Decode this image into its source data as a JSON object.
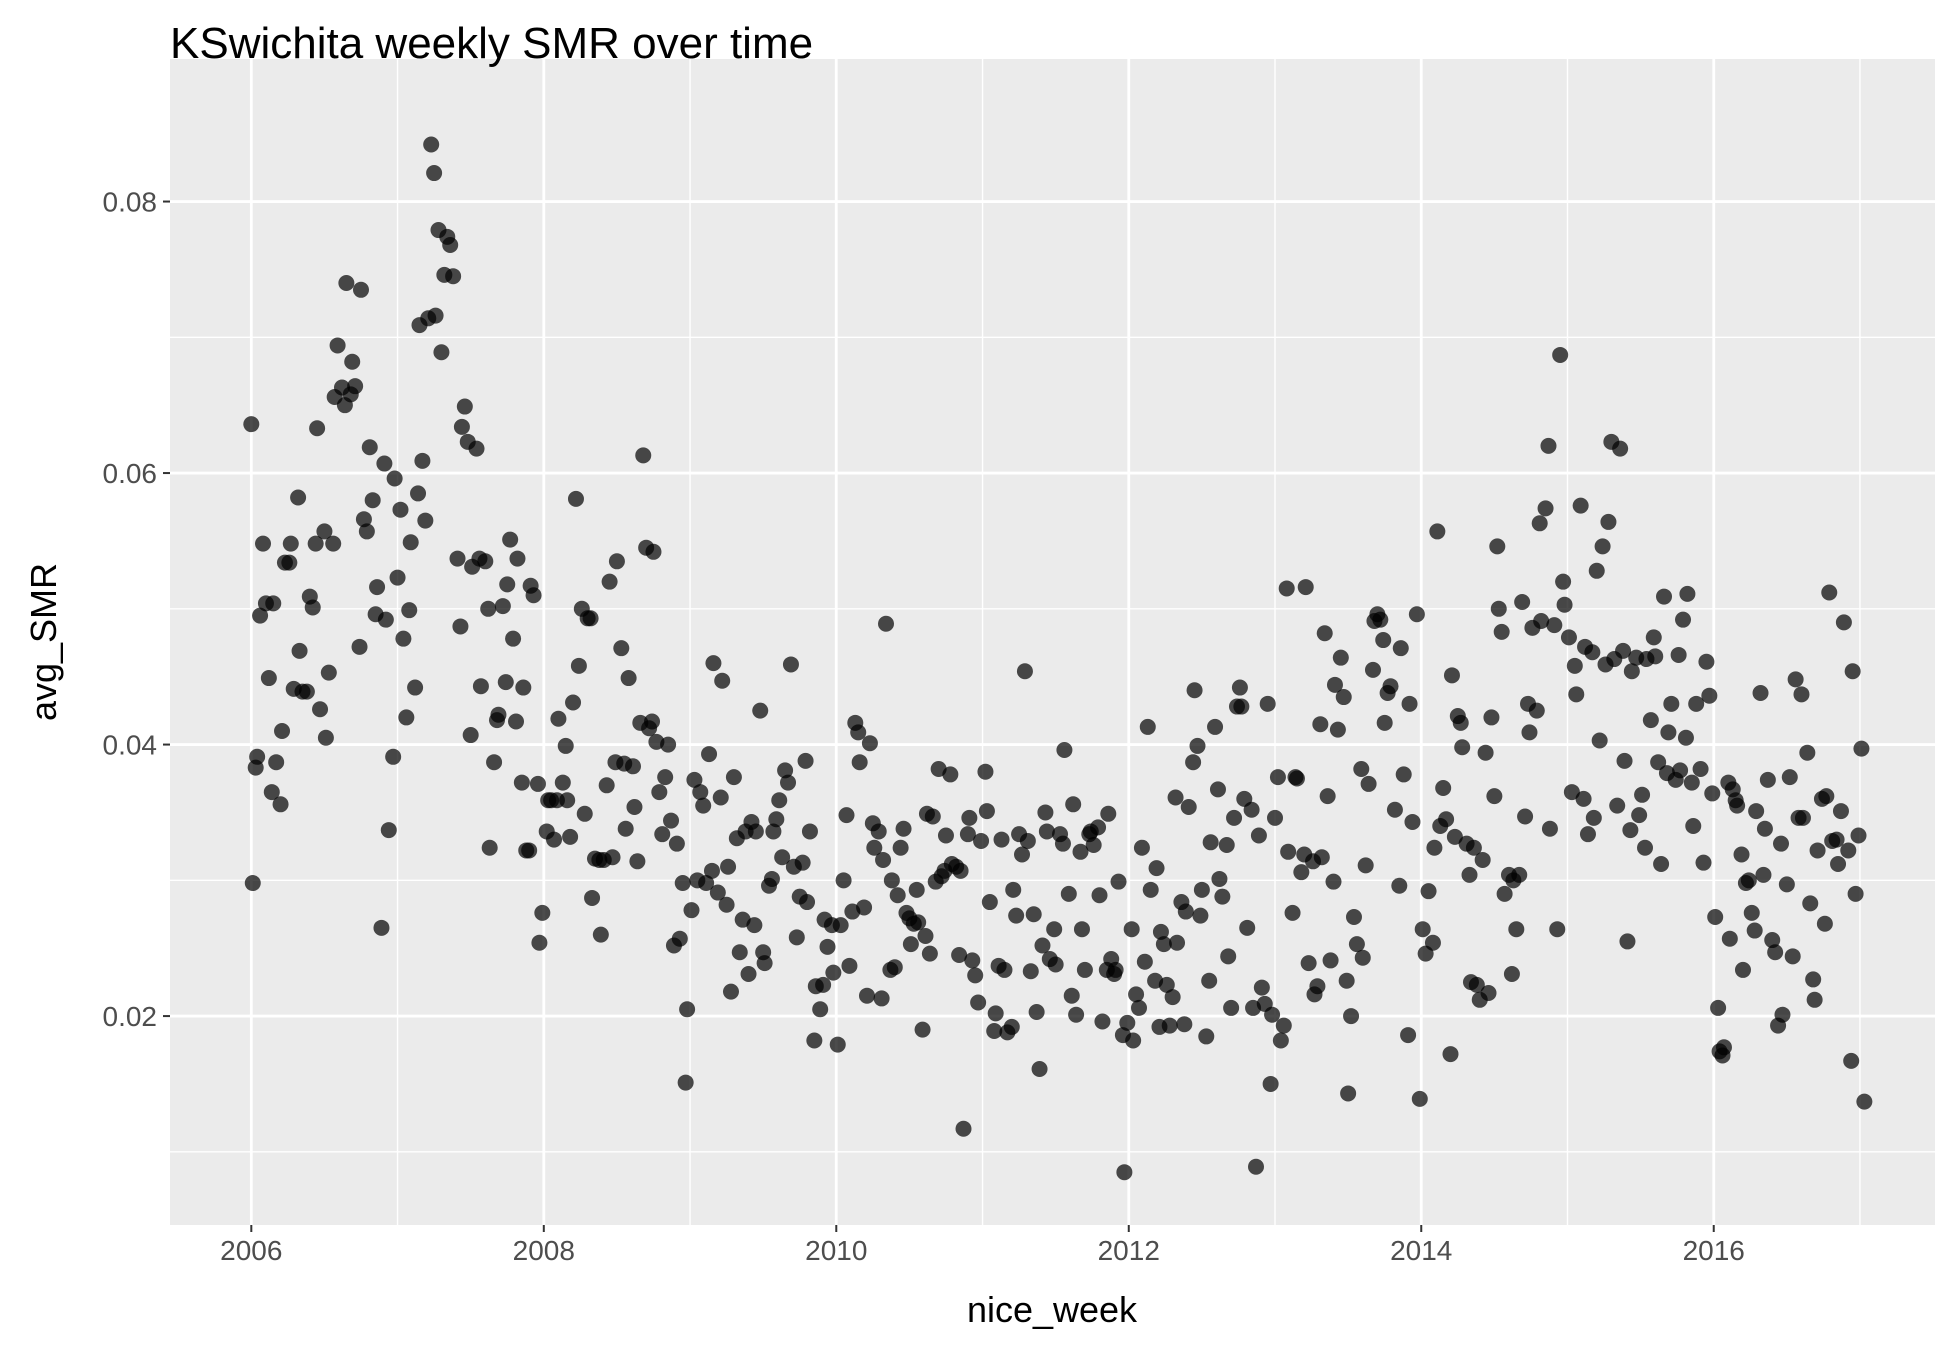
{
  "chart_data": {
    "type": "scatter",
    "title": "KSwichita weekly SMR over time",
    "x_label": "nice_week",
    "y_label": "avg_SMR",
    "color": "#000000",
    "point_alpha": 0.7,
    "grid": true,
    "xlim": [
      2005.444,
      2017.513
    ],
    "ylim": [
      0.00461,
      0.0905
    ],
    "xticks": [
      2006,
      2008,
      2010,
      2012,
      2014,
      2016
    ],
    "yticks": [
      0.02,
      0.04,
      0.06,
      0.08
    ],
    "x_minor_ticks": [
      2007,
      2009,
      2011,
      2013,
      2015,
      2017
    ],
    "y_minor_ticks": [
      0.01,
      0.03,
      0.05,
      0.07
    ],
    "x": [
      2006.0,
      2006.01,
      2006.03,
      2006.04,
      2006.06,
      2006.08,
      2006.1,
      2006.12,
      2006.14,
      2006.15,
      2006.17,
      2006.2,
      2006.21,
      2006.23,
      2006.26,
      2006.27,
      2006.29,
      2006.32,
      2006.33,
      2006.35,
      2006.38,
      2006.4,
      2006.42,
      2006.44,
      2006.45,
      2006.47,
      2006.5,
      2006.51,
      2006.53,
      2006.56,
      2006.57,
      2006.59,
      2006.62,
      2006.64,
      2006.65,
      2006.68,
      2006.69,
      2006.71,
      2006.74,
      2006.75,
      2006.77,
      2006.79,
      2006.81,
      2006.83,
      2006.85,
      2006.86,
      2006.89,
      2006.91,
      2006.92,
      2006.94,
      2006.97,
      2006.98,
      2007.0,
      2007.02,
      2007.04,
      2007.06,
      2007.08,
      2007.09,
      2007.12,
      2007.14,
      2007.15,
      2007.17,
      2007.19,
      2007.21,
      2007.23,
      2007.25,
      2007.26,
      2007.28,
      2007.3,
      2007.32,
      2007.34,
      2007.36,
      2007.38,
      2007.41,
      2007.43,
      2007.44,
      2007.46,
      2007.48,
      2007.5,
      2007.51,
      2007.54,
      2007.56,
      2007.57,
      2007.6,
      2007.62,
      2007.63,
      2007.66,
      2007.68,
      2007.69,
      2007.72,
      2007.74,
      2007.75,
      2007.77,
      2007.79,
      2007.81,
      2007.82,
      2007.85,
      2007.86,
      2007.88,
      2007.9,
      2007.91,
      2007.93,
      2007.96,
      2007.97,
      2007.99,
      2008.02,
      2008.03,
      2008.05,
      2008.07,
      2008.09,
      2008.1,
      2008.13,
      2008.15,
      2008.16,
      2008.18,
      2008.2,
      2008.22,
      2008.24,
      2008.26,
      2008.28,
      2008.3,
      2008.32,
      2008.33,
      2008.35,
      2008.38,
      2008.39,
      2008.41,
      2008.43,
      2008.45,
      2008.47,
      2008.49,
      2008.5,
      2008.53,
      2008.55,
      2008.56,
      2008.58,
      2008.61,
      2008.62,
      2008.64,
      2008.66,
      2008.68,
      2008.7,
      2008.72,
      2008.74,
      2008.75,
      2008.77,
      2008.79,
      2008.81,
      2008.83,
      2008.85,
      2008.87,
      2008.89,
      2008.91,
      2008.93,
      2008.95,
      2008.97,
      2008.98,
      2009.01,
      2009.03,
      2009.05,
      2009.07,
      2009.09,
      2009.11,
      2009.13,
      2009.15,
      2009.16,
      2009.19,
      2009.21,
      2009.22,
      2009.25,
      2009.26,
      2009.28,
      2009.3,
      2009.32,
      2009.34,
      2009.36,
      2009.38,
      2009.4,
      2009.42,
      2009.44,
      2009.45,
      2009.48,
      2009.5,
      2009.51,
      2009.54,
      2009.56,
      2009.57,
      2009.59,
      2009.61,
      2009.63,
      2009.65,
      2009.67,
      2009.69,
      2009.71,
      2009.73,
      2009.75,
      2009.77,
      2009.79,
      2009.8,
      2009.82,
      2009.85,
      2009.86,
      2009.89,
      2009.91,
      2009.92,
      2009.94,
      2009.97,
      2009.98,
      2010.01,
      2010.03,
      2010.05,
      2010.07,
      2010.09,
      2010.11,
      2010.13,
      2010.15,
      2010.16,
      2010.19,
      2010.21,
      2010.23,
      2010.25,
      2010.26,
      2010.29,
      2010.31,
      2010.32,
      2010.34,
      2010.37,
      2010.38,
      2010.4,
      2010.42,
      2010.44,
      2010.46,
      2010.48,
      2010.5,
      2010.51,
      2010.53,
      2010.55,
      2010.56,
      2010.59,
      2010.61,
      2010.62,
      2010.64,
      2010.66,
      2010.68,
      2010.7,
      2010.72,
      2010.74,
      2010.75,
      2010.78,
      2010.79,
      2010.82,
      2010.84,
      2010.85,
      2010.87,
      2010.9,
      2010.91,
      2010.93,
      2010.95,
      2010.97,
      2010.99,
      2011.02,
      2011.03,
      2011.05,
      2011.08,
      2011.09,
      2011.11,
      2011.13,
      2011.15,
      2011.17,
      2011.2,
      2011.21,
      2011.23,
      2011.25,
      2011.27,
      2011.29,
      2011.31,
      2011.33,
      2011.35,
      2011.37,
      2011.39,
      2011.41,
      2011.43,
      2011.44,
      2011.46,
      2011.49,
      2011.5,
      2011.53,
      2011.55,
      2011.56,
      2011.59,
      2011.61,
      2011.62,
      2011.64,
      2011.67,
      2011.68,
      2011.7,
      2011.73,
      2011.74,
      2011.76,
      2011.79,
      2011.8,
      2011.82,
      2011.85,
      2011.86,
      2011.88,
      2011.9,
      2011.91,
      2011.93,
      2011.96,
      2011.97,
      2011.99,
      2012.02,
      2012.03,
      2012.05,
      2012.07,
      2012.09,
      2012.11,
      2012.13,
      2012.15,
      2012.18,
      2012.19,
      2012.21,
      2012.22,
      2012.24,
      2012.26,
      2012.28,
      2012.3,
      2012.32,
      2012.33,
      2012.36,
      2012.38,
      2012.39,
      2012.41,
      2012.44,
      2012.45,
      2012.47,
      2012.49,
      2012.5,
      2012.53,
      2012.55,
      2012.56,
      2012.59,
      2012.61,
      2012.62,
      2012.64,
      2012.67,
      2012.68,
      2012.7,
      2012.72,
      2012.74,
      2012.76,
      2012.77,
      2012.79,
      2012.81,
      2012.84,
      2012.85,
      2012.87,
      2012.89,
      2012.91,
      2012.93,
      2012.95,
      2012.97,
      2012.98,
      2013.0,
      2013.02,
      2013.04,
      2013.06,
      2013.08,
      2013.09,
      2013.12,
      2013.14,
      2013.15,
      2013.18,
      2013.2,
      2013.21,
      2013.23,
      2013.26,
      2013.27,
      2013.29,
      2013.31,
      2013.32,
      2013.34,
      2013.36,
      2013.38,
      2013.4,
      2013.41,
      2013.43,
      2013.45,
      2013.47,
      2013.49,
      2013.5,
      2013.52,
      2013.54,
      2013.56,
      2013.59,
      2013.6,
      2013.62,
      2013.64,
      2013.67,
      2013.68,
      2013.7,
      2013.72,
      2013.74,
      2013.75,
      2013.77,
      2013.79,
      2013.82,
      2013.85,
      2013.86,
      2013.88,
      2013.91,
      2013.92,
      2013.94,
      2013.97,
      2013.99,
      2014.01,
      2014.03,
      2014.05,
      2014.08,
      2014.09,
      2014.11,
      2014.13,
      2014.15,
      2014.17,
      2014.2,
      2014.21,
      2014.23,
      2014.25,
      2014.27,
      2014.28,
      2014.31,
      2014.33,
      2014.34,
      2014.36,
      2014.38,
      2014.4,
      2014.42,
      2014.44,
      2014.46,
      2014.48,
      2014.5,
      2014.52,
      2014.53,
      2014.55,
      2014.57,
      2014.6,
      2014.62,
      2014.63,
      2014.65,
      2014.67,
      2014.69,
      2014.71,
      2014.73,
      2014.74,
      2014.76,
      2014.79,
      2014.81,
      2014.82,
      2014.85,
      2014.87,
      2014.88,
      2014.91,
      2014.93,
      2014.95,
      2014.97,
      2014.98,
      2015.01,
      2015.03,
      2015.05,
      2015.06,
      2015.09,
      2015.11,
      2015.12,
      2015.14,
      2015.17,
      2015.18,
      2015.2,
      2015.22,
      2015.24,
      2015.26,
      2015.28,
      2015.3,
      2015.32,
      2015.34,
      2015.36,
      2015.38,
      2015.39,
      2015.41,
      2015.43,
      2015.44,
      2015.47,
      2015.49,
      2015.51,
      2015.53,
      2015.54,
      2015.57,
      2015.59,
      2015.6,
      2015.62,
      2015.64,
      2015.66,
      2015.68,
      2015.69,
      2015.71,
      2015.74,
      2015.76,
      2015.77,
      2015.79,
      2015.81,
      2015.82,
      2015.85,
      2015.86,
      2015.88,
      2015.91,
      2015.93,
      2015.95,
      2015.97,
      2015.99,
      2016.01,
      2016.03,
      2016.04,
      2016.06,
      2016.07,
      2016.1,
      2016.11,
      2016.13,
      2016.15,
      2016.16,
      2016.19,
      2016.2,
      2016.22,
      2016.24,
      2016.26,
      2016.28,
      2016.29,
      2016.32,
      2016.34,
      2016.35,
      2016.37,
      2016.4,
      2016.42,
      2016.44,
      2016.46,
      2016.47,
      2016.5,
      2016.52,
      2016.54,
      2016.56,
      2016.58,
      2016.6,
      2016.61,
      2016.64,
      2016.66,
      2016.68,
      2016.69,
      2016.71,
      2016.74,
      2016.76,
      2016.77,
      2016.79,
      2016.81,
      2016.84,
      2016.85,
      2016.87,
      2016.89,
      2016.92,
      2016.94,
      2016.95,
      2016.97,
      2016.99,
      2017.01,
      2017.03
    ],
    "values": [
      0.0636,
      0.0298,
      0.0383,
      0.0391,
      0.0495,
      0.0548,
      0.0504,
      0.0449,
      0.0365,
      0.0504,
      0.0387,
      0.0356,
      0.041,
      0.0534,
      0.0534,
      0.0548,
      0.0441,
      0.0582,
      0.0469,
      0.0439,
      0.0439,
      0.0509,
      0.0501,
      0.0548,
      0.0633,
      0.0426,
      0.0557,
      0.0405,
      0.0453,
      0.0548,
      0.0656,
      0.0694,
      0.0663,
      0.065,
      0.074,
      0.0658,
      0.0682,
      0.0664,
      0.0472,
      0.0735,
      0.0566,
      0.0557,
      0.0619,
      0.058,
      0.0496,
      0.0516,
      0.0265,
      0.0607,
      0.0492,
      0.0337,
      0.0391,
      0.0596,
      0.0523,
      0.0573,
      0.0478,
      0.042,
      0.0499,
      0.0549,
      0.0442,
      0.0585,
      0.0709,
      0.0609,
      0.0565,
      0.0714,
      0.0842,
      0.0821,
      0.0716,
      0.0779,
      0.0689,
      0.0746,
      0.0774,
      0.0768,
      0.0745,
      0.0537,
      0.0487,
      0.0634,
      0.0649,
      0.0623,
      0.0407,
      0.0531,
      0.0618,
      0.0537,
      0.0443,
      0.0535,
      0.05,
      0.0324,
      0.0387,
      0.0418,
      0.0422,
      0.0502,
      0.0446,
      0.0518,
      0.0551,
      0.0478,
      0.0417,
      0.0537,
      0.0372,
      0.0442,
      0.0322,
      0.0322,
      0.0517,
      0.051,
      0.0371,
      0.0254,
      0.0276,
      0.0336,
      0.0359,
      0.0359,
      0.033,
      0.0359,
      0.0419,
      0.0372,
      0.0399,
      0.0359,
      0.0332,
      0.0431,
      0.0581,
      0.0458,
      0.05,
      0.0349,
      0.0493,
      0.0493,
      0.0287,
      0.0316,
      0.0315,
      0.026,
      0.0315,
      0.037,
      0.052,
      0.0317,
      0.0387,
      0.0535,
      0.0471,
      0.0386,
      0.0338,
      0.0449,
      0.0384,
      0.0354,
      0.0314,
      0.0416,
      0.0613,
      0.0545,
      0.0412,
      0.0417,
      0.0542,
      0.0402,
      0.0365,
      0.0334,
      0.0376,
      0.04,
      0.0344,
      0.0252,
      0.0327,
      0.0257,
      0.0298,
      0.0151,
      0.0205,
      0.0278,
      0.0374,
      0.03,
      0.0365,
      0.0355,
      0.0298,
      0.0393,
      0.0307,
      0.046,
      0.0291,
      0.0361,
      0.0447,
      0.0282,
      0.031,
      0.0218,
      0.0376,
      0.0331,
      0.0247,
      0.0271,
      0.0336,
      0.0231,
      0.0343,
      0.0267,
      0.0336,
      0.0425,
      0.0247,
      0.0239,
      0.0296,
      0.0301,
      0.0336,
      0.0345,
      0.0359,
      0.0317,
      0.0381,
      0.0372,
      0.0459,
      0.031,
      0.0258,
      0.0288,
      0.0313,
      0.0388,
      0.0284,
      0.0336,
      0.0182,
      0.0222,
      0.0205,
      0.0223,
      0.0271,
      0.0251,
      0.0267,
      0.0232,
      0.0179,
      0.0267,
      0.03,
      0.0348,
      0.0237,
      0.0277,
      0.0416,
      0.0409,
      0.0387,
      0.028,
      0.0215,
      0.0401,
      0.0342,
      0.0324,
      0.0336,
      0.0213,
      0.0315,
      0.0489,
      0.0234,
      0.03,
      0.0236,
      0.0289,
      0.0324,
      0.0338,
      0.0276,
      0.0272,
      0.0253,
      0.0268,
      0.0293,
      0.0269,
      0.019,
      0.0259,
      0.0349,
      0.0246,
      0.0347,
      0.0299,
      0.0382,
      0.0303,
      0.0307,
      0.0333,
      0.0378,
      0.0312,
      0.031,
      0.0245,
      0.0307,
      0.0117,
      0.0334,
      0.0346,
      0.0241,
      0.023,
      0.021,
      0.0329,
      0.038,
      0.0351,
      0.0284,
      0.0189,
      0.0202,
      0.0237,
      0.033,
      0.0234,
      0.0188,
      0.0192,
      0.0293,
      0.0274,
      0.0334,
      0.0319,
      0.0454,
      0.0329,
      0.0233,
      0.0275,
      0.0203,
      0.0161,
      0.0252,
      0.035,
      0.0336,
      0.0242,
      0.0264,
      0.0238,
      0.0334,
      0.0327,
      0.0396,
      0.029,
      0.0215,
      0.0356,
      0.0201,
      0.0321,
      0.0264,
      0.0234,
      0.0334,
      0.0336,
      0.0326,
      0.0339,
      0.0289,
      0.0196,
      0.0234,
      0.0349,
      0.0242,
      0.0231,
      0.0234,
      0.0299,
      0.0186,
      0.0085,
      0.0195,
      0.0264,
      0.0182,
      0.0216,
      0.0206,
      0.0324,
      0.024,
      0.0413,
      0.0293,
      0.0226,
      0.0309,
      0.0192,
      0.0262,
      0.0253,
      0.0223,
      0.0193,
      0.0214,
      0.0361,
      0.0254,
      0.0284,
      0.0194,
      0.0277,
      0.0354,
      0.0387,
      0.044,
      0.0399,
      0.0274,
      0.0293,
      0.0185,
      0.0226,
      0.0328,
      0.0413,
      0.0367,
      0.0301,
      0.0288,
      0.0326,
      0.0244,
      0.0206,
      0.0346,
      0.0428,
      0.0442,
      0.0428,
      0.036,
      0.0265,
      0.0352,
      0.0206,
      0.0089,
      0.0333,
      0.0221,
      0.0209,
      0.043,
      0.015,
      0.0201,
      0.0346,
      0.0376,
      0.0182,
      0.0193,
      0.0515,
      0.0321,
      0.0276,
      0.0376,
      0.0375,
      0.0306,
      0.0319,
      0.0516,
      0.0239,
      0.0314,
      0.0216,
      0.0222,
      0.0415,
      0.0317,
      0.0482,
      0.0362,
      0.0241,
      0.0299,
      0.0444,
      0.0411,
      0.0464,
      0.0435,
      0.0226,
      0.0143,
      0.02,
      0.0273,
      0.0253,
      0.0382,
      0.0243,
      0.0311,
      0.0371,
      0.0455,
      0.0491,
      0.0496,
      0.0492,
      0.0477,
      0.0416,
      0.0438,
      0.0443,
      0.0352,
      0.0296,
      0.0471,
      0.0378,
      0.0186,
      0.043,
      0.0343,
      0.0496,
      0.0139,
      0.0264,
      0.0246,
      0.0292,
      0.0254,
      0.0324,
      0.0557,
      0.034,
      0.0368,
      0.0345,
      0.0172,
      0.0451,
      0.0332,
      0.0421,
      0.0416,
      0.0398,
      0.0327,
      0.0304,
      0.0225,
      0.0324,
      0.0223,
      0.0212,
      0.0315,
      0.0394,
      0.0217,
      0.042,
      0.0362,
      0.0546,
      0.05,
      0.0483,
      0.029,
      0.0304,
      0.0231,
      0.03,
      0.0264,
      0.0304,
      0.0505,
      0.0347,
      0.043,
      0.0409,
      0.0486,
      0.0425,
      0.0563,
      0.0491,
      0.0574,
      0.062,
      0.0338,
      0.0488,
      0.0264,
      0.0687,
      0.052,
      0.0503,
      0.0479,
      0.0365,
      0.0458,
      0.0437,
      0.0576,
      0.036,
      0.0472,
      0.0334,
      0.0468,
      0.0346,
      0.0528,
      0.0403,
      0.0546,
      0.0459,
      0.0564,
      0.0623,
      0.0463,
      0.0355,
      0.0618,
      0.0469,
      0.0388,
      0.0255,
      0.0337,
      0.0454,
      0.0464,
      0.0348,
      0.0363,
      0.0324,
      0.0463,
      0.0418,
      0.0479,
      0.0465,
      0.0387,
      0.0312,
      0.0509,
      0.0379,
      0.0409,
      0.043,
      0.0374,
      0.0466,
      0.0381,
      0.0492,
      0.0405,
      0.0511,
      0.0372,
      0.034,
      0.043,
      0.0382,
      0.0313,
      0.0461,
      0.0436,
      0.0364,
      0.0273,
      0.0206,
      0.0174,
      0.0171,
      0.0177,
      0.0372,
      0.0257,
      0.0367,
      0.0359,
      0.0355,
      0.0319,
      0.0234,
      0.0298,
      0.03,
      0.0276,
      0.0263,
      0.0351,
      0.0438,
      0.0304,
      0.0338,
      0.0374,
      0.0256,
      0.0247,
      0.0193,
      0.0327,
      0.0201,
      0.0297,
      0.0376,
      0.0244,
      0.0448,
      0.0346,
      0.0437,
      0.0346,
      0.0394,
      0.0283,
      0.0227,
      0.0212,
      0.0322,
      0.036,
      0.0268,
      0.0362,
      0.0512,
      0.0329,
      0.033,
      0.0312,
      0.0351,
      0.049,
      0.0322,
      0.0167,
      0.0454,
      0.029,
      0.0333,
      0.0397,
      0.0137
    ]
  }
}
